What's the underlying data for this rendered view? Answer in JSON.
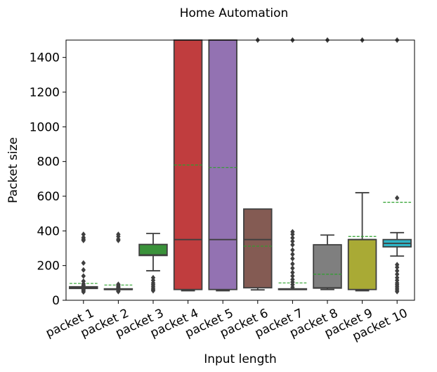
{
  "chart_data": {
    "type": "box",
    "title": "Home Automation",
    "xlabel": "Input length",
    "ylabel": "Packet size",
    "ylim": [
      0,
      1500
    ],
    "yticks": [
      0,
      200,
      400,
      600,
      800,
      1000,
      1200,
      1400
    ],
    "grid": false,
    "legend": "none",
    "categories": [
      "packet 1",
      "packet 2",
      "packet 3",
      "packet 4",
      "packet 5",
      "packet 6",
      "packet 7",
      "packet 8",
      "packet 9",
      "packet 10"
    ],
    "boxes": [
      {
        "q1": 68,
        "median": 72,
        "q3": 78,
        "whisker_low": 68,
        "whisker_high": 78,
        "mean": 97,
        "color": "#3274a1",
        "outliers": [
          48,
          55,
          62,
          80,
          86,
          95,
          110,
          140,
          175,
          215,
          345,
          352,
          362,
          380
        ]
      },
      {
        "q1": 62,
        "median": 62,
        "q3": 66,
        "whisker_low": 62,
        "whisker_high": 66,
        "mean": 88,
        "color": "#e1812c",
        "outliers": [
          50,
          55,
          70,
          74,
          80,
          86,
          92,
          345,
          352,
          368,
          380
        ]
      },
      {
        "q1": 258,
        "median": 262,
        "q3": 322,
        "whisker_low": 170,
        "whisker_high": 385,
        "mean": null,
        "color": "#3a923a",
        "outliers": [
          55,
          62,
          70,
          80,
          90,
          100,
          115,
          130
        ]
      },
      {
        "q1": 62,
        "median": 350,
        "q3": 1500,
        "whisker_low": 55,
        "whisker_high": 1500,
        "mean": 780,
        "color": "#c03d3e",
        "outliers": []
      },
      {
        "q1": 62,
        "median": 350,
        "q3": 1500,
        "whisker_low": 55,
        "whisker_high": 1500,
        "mean": 765,
        "color": "#9372b2",
        "outliers": []
      },
      {
        "q1": 72,
        "median": 350,
        "q3": 526,
        "whisker_low": 60,
        "whisker_high": 526,
        "mean": 312,
        "color": "#845b53",
        "outliers": [
          1500
        ]
      },
      {
        "q1": 62,
        "median": 62,
        "q3": 66,
        "whisker_low": 62,
        "whisker_high": 66,
        "mean": 100,
        "color": "#d684bd",
        "outliers": [
          75,
          90,
          105,
          120,
          140,
          160,
          185,
          210,
          240,
          265,
          290,
          320,
          340,
          360,
          380,
          395,
          1500
        ]
      },
      {
        "q1": 70,
        "median": 72,
        "q3": 320,
        "whisker_low": 62,
        "whisker_high": 376,
        "mean": 150,
        "color": "#7f7f7f",
        "outliers": [
          1500
        ]
      },
      {
        "q1": 62,
        "median": 350,
        "q3": 350,
        "whisker_low": 55,
        "whisker_high": 620,
        "mean": 368,
        "color": "#a9aa35",
        "outliers": [
          1500
        ]
      },
      {
        "q1": 308,
        "median": 328,
        "q3": 350,
        "whisker_low": 255,
        "whisker_high": 390,
        "mean": 565,
        "color": "#2eb4c6",
        "outliers": [
          50,
          60,
          70,
          80,
          90,
          100,
          115,
          130,
          150,
          170,
          190,
          205,
          590,
          1500
        ]
      }
    ]
  }
}
